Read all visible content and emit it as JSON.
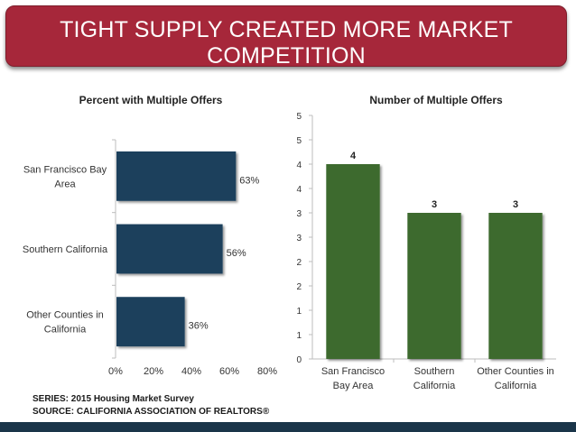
{
  "title": "TIGHT SUPPLY CREATED MORE MARKET COMPETITION",
  "colors": {
    "banner": "#a6273a",
    "bar_left": "#1a3f5c",
    "bar_right": "#3e6b2e",
    "bottom_bar": "#1a3549"
  },
  "chart_data": [
    {
      "type": "bar",
      "orientation": "horizontal",
      "title": "Percent with Multiple Offers",
      "categories": [
        [
          "San Francisco Bay",
          "Area"
        ],
        [
          "Southern California"
        ],
        [
          "Other Counties in",
          "California"
        ]
      ],
      "values": [
        63,
        56,
        36
      ],
      "value_labels": [
        "63%",
        "56%",
        "36%"
      ],
      "xlim": [
        0,
        80
      ],
      "x_ticks": [
        0,
        20,
        40,
        60,
        80
      ],
      "x_tick_labels": [
        "0%",
        "20%",
        "40%",
        "60%",
        "80%"
      ]
    },
    {
      "type": "bar",
      "title": "Number of Multiple Offers",
      "categories": [
        [
          "San Francisco",
          "Bay Area"
        ],
        [
          "Southern",
          "California"
        ],
        [
          "Other Counties in",
          "California"
        ]
      ],
      "values": [
        4,
        3,
        3
      ],
      "value_labels": [
        "4",
        "3",
        "3"
      ],
      "ylim": [
        0,
        5
      ],
      "y_ticks": [
        0,
        0.5,
        1,
        1.5,
        2,
        2.5,
        3,
        3.5,
        4,
        4.5,
        5
      ],
      "y_tick_labels": [
        "0",
        "1",
        "1",
        "2",
        "2",
        "3",
        "3",
        "4",
        "4",
        "5",
        "5"
      ]
    }
  ],
  "footer": {
    "series": "SERIES: 2015 Housing Market Survey",
    "source": "SOURCE:  CALIFORNIA ASSOCIATION OF REALTORS®"
  }
}
